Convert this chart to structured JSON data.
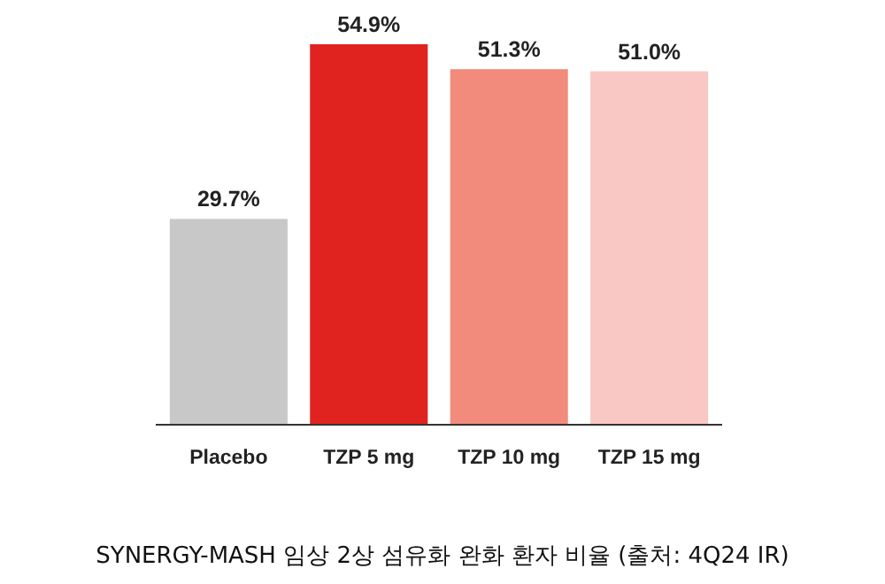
{
  "chart_data": {
    "type": "bar",
    "categories": [
      "Placebo",
      "TZP 5 mg",
      "TZP 10 mg",
      "TZP 15 mg"
    ],
    "values": [
      29.7,
      54.9,
      51.3,
      51.0
    ],
    "colors": [
      "#c8c8c8",
      "#e0231e",
      "#f28b7b",
      "#f9c8c4"
    ],
    "value_labels": [
      "29.7%",
      "54.9%",
      "51.3%",
      "51.0%"
    ],
    "annotations": [
      "SYNERGY-MASH 임상 2상 섬유화 완화 환자 비율 (출처: 4Q24 IR)"
    ]
  }
}
